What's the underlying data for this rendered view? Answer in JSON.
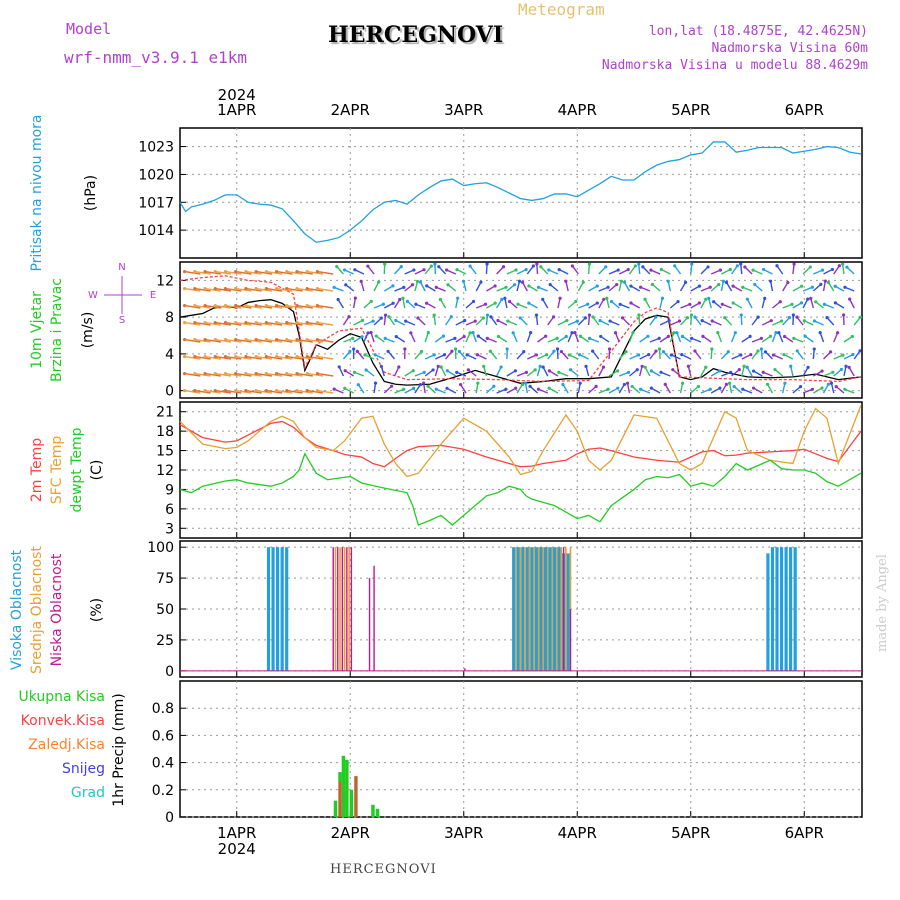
{
  "header": {
    "model_label": "Model",
    "model_name": "wrf-nmm_v3.9.1  e1km",
    "station": "HERCEGNOVI",
    "meteogram": "Meteogram",
    "lonlat": "lon,lat (18.4875E, 42.4625N)",
    "altitude": "Nadmorska Visina 60m",
    "model_altitude": "Nadmorska Visina u modelu 88.4629m",
    "footer_station": "HERCEGNOVI",
    "credit": "made by Angel"
  },
  "colors": {
    "pressure": "#22a0e0",
    "wind_speed": "#000000",
    "gust": "#ff4040",
    "temp2m": "#ff4040",
    "sfc_temp": "#e8a030",
    "dewpoint": "#22cc22",
    "high_cloud": "#22a0e0",
    "mid_cloud": "#e8a030",
    "low_cloud": "#c01890",
    "total_precip": "#22cc22",
    "conv_precip": "#ff4040",
    "frozen_precip": "#ff8030",
    "snow": "#4040e0",
    "hail": "#20c8c0"
  },
  "chart_data": [
    {
      "id": "pressure",
      "type": "line",
      "ylabel": [
        "Pritisak na nivou mora",
        "(hPa)"
      ],
      "yticks": [
        1014,
        1017,
        1020,
        1023
      ],
      "ylim": [
        1011,
        1025
      ],
      "top_axis": {
        "year": "2024",
        "labels": [
          "1APR",
          "2APR",
          "3APR",
          "4APR",
          "5APR",
          "6APR"
        ]
      },
      "series": [
        {
          "x": [
            0,
            0.05,
            0.1,
            0.2,
            0.3,
            0.4,
            0.5,
            0.6,
            0.7,
            0.8,
            0.9,
            1.0,
            1.1,
            1.2,
            1.3,
            1.4,
            1.5,
            1.6,
            1.7,
            1.8,
            1.9,
            2.0,
            2.1,
            2.2,
            2.3,
            2.4,
            2.5,
            2.6,
            2.7,
            2.8,
            2.9,
            3.0,
            3.1,
            3.2,
            3.3,
            3.4,
            3.5,
            3.6,
            3.7,
            3.8,
            3.9,
            4.0,
            4.1,
            4.2,
            4.3,
            4.4,
            4.5,
            4.6,
            4.7,
            4.8,
            4.9,
            5.0,
            5.1,
            5.2,
            5.3,
            5.4,
            5.5,
            5.6,
            5.7,
            5.8,
            5.9,
            6.0
          ],
          "values": [
            1017,
            1016,
            1016.5,
            1016.8,
            1017.2,
            1017.8,
            1017.8,
            1017,
            1016.8,
            1016.7,
            1016.3,
            1015,
            1013.6,
            1012.7,
            1012.9,
            1013.2,
            1014,
            1015,
            1016.2,
            1017,
            1017.2,
            1016.8,
            1017.8,
            1018.6,
            1019.3,
            1019.5,
            1018.8,
            1019,
            1019.1,
            1018.6,
            1018,
            1017.4,
            1017.2,
            1017.4,
            1017.9,
            1017.9,
            1017.6,
            1018.3,
            1019,
            1019.8,
            1019.4,
            1019.4,
            1020.3,
            1021,
            1021.4,
            1021.6,
            1022.1,
            1022.3,
            1023.5,
            1023.5,
            1022.4,
            1022.6,
            1022.9,
            1022.9,
            1022.9,
            1022.3,
            1022.5,
            1022.7,
            1023,
            1022.9,
            1022.4,
            1022.2
          ]
        }
      ]
    },
    {
      "id": "wind",
      "type": "line",
      "ylabel": [
        "10m Vjetar",
        "Brzina i Pravac",
        "(m/s)"
      ],
      "yticks": [
        0,
        4,
        8,
        12
      ],
      "ylim": [
        -0.8,
        14
      ],
      "compass": {
        "n": "N",
        "s": "S",
        "e": "E",
        "w": "W"
      },
      "series": [
        {
          "name": "speed",
          "x": [
            0,
            0.1,
            0.2,
            0.3,
            0.4,
            0.5,
            0.6,
            0.7,
            0.8,
            0.9,
            1.0,
            1.05,
            1.1,
            1.15,
            1.2,
            1.3,
            1.4,
            1.5,
            1.6,
            1.7,
            1.8,
            1.9,
            2.0,
            2.2,
            2.4,
            2.6,
            2.8,
            3.0,
            3.2,
            3.4,
            3.6,
            3.8,
            4.0,
            4.1,
            4.2,
            4.3,
            4.4,
            4.5,
            4.6,
            4.7,
            4.8,
            5.0,
            5.2,
            5.4,
            5.6,
            5.8,
            6.0
          ],
          "values": [
            8,
            8.2,
            8.4,
            9,
            9.2,
            9,
            9.6,
            9.8,
            9.9,
            9.5,
            8.6,
            6,
            2.2,
            3.5,
            5,
            4.5,
            5.5,
            6.2,
            5.8,
            3,
            1,
            0.7,
            0.6,
            0.7,
            1.4,
            2.2,
            1.5,
            0.8,
            1.0,
            1.3,
            1.3,
            1.5,
            6.5,
            7.8,
            8.2,
            8,
            1.5,
            1.2,
            1.5,
            2.4,
            2,
            1.5,
            1.4,
            1.5,
            1.8,
            1.2,
            1.5
          ]
        },
        {
          "name": "gust",
          "x": [
            0,
            0.2,
            0.4,
            0.6,
            0.8,
            1.0,
            1.1,
            1.2,
            1.4,
            1.6,
            1.8,
            2.0,
            2.4,
            2.8,
            3.2,
            3.6,
            4.0,
            4.1,
            4.2,
            4.3,
            4.4,
            4.6,
            5.0,
            5.4,
            5.8,
            6.0
          ],
          "values": [
            12,
            12.3,
            12.5,
            12,
            11.8,
            10.5,
            2.5,
            5,
            6.5,
            6.8,
            2,
            1.2,
            1.3,
            1.2,
            1,
            1.1,
            7.5,
            8.5,
            9,
            8.5,
            1.5,
            1.4,
            1.2,
            1.2,
            1.0,
            1.5
          ]
        }
      ]
    },
    {
      "id": "temperature",
      "type": "line",
      "ylabel": [
        "2m Temp",
        "SFC Temp",
        "dewpt Temp",
        "(C)"
      ],
      "yticks": [
        3,
        6,
        9,
        12,
        15,
        18,
        21
      ],
      "ylim": [
        1.5,
        22.5
      ],
      "series": [
        {
          "name": "2m Temp",
          "x": [
            0,
            0.2,
            0.4,
            0.5,
            0.6,
            0.8,
            0.9,
            1.0,
            1.1,
            1.2,
            1.35,
            1.45,
            1.6,
            1.7,
            1.8,
            1.9,
            2.0,
            2.1,
            2.3,
            2.5,
            2.7,
            2.9,
            3.0,
            3.1,
            3.2,
            3.4,
            3.5,
            3.6,
            3.7,
            3.8,
            4.0,
            4.2,
            4.4,
            4.5,
            4.6,
            4.7,
            4.8,
            4.9,
            5.0,
            5.2,
            5.4,
            5.5,
            5.6,
            5.7,
            5.8,
            6.0
          ],
          "values": [
            19,
            17,
            16.3,
            16.5,
            17.4,
            19.2,
            19.5,
            18.6,
            17,
            15.8,
            15,
            14.4,
            14,
            13,
            12.5,
            13.8,
            15,
            15.6,
            15.8,
            15.2,
            14,
            13,
            12.5,
            12.6,
            13,
            13.5,
            14.5,
            15.2,
            15.4,
            15,
            14,
            13.5,
            13.2,
            14,
            14.8,
            15,
            14.2,
            14.3,
            14.6,
            14.8,
            15,
            15.2,
            14.5,
            13.8,
            13.3,
            18
          ]
        },
        {
          "name": "SFC Temp",
          "x": [
            0,
            0.2,
            0.4,
            0.5,
            0.6,
            0.8,
            0.9,
            1.0,
            1.1,
            1.2,
            1.35,
            1.45,
            1.6,
            1.7,
            1.8,
            1.9,
            2.0,
            2.1,
            2.3,
            2.5,
            2.7,
            2.9,
            3.0,
            3.1,
            3.2,
            3.4,
            3.5,
            3.6,
            3.7,
            3.8,
            4.0,
            4.2,
            4.4,
            4.5,
            4.6,
            4.7,
            4.8,
            4.9,
            5.0,
            5.2,
            5.4,
            5.5,
            5.6,
            5.7,
            5.8,
            6.0
          ],
          "values": [
            19.5,
            16,
            15.3,
            15.5,
            16.5,
            19.5,
            20.3,
            19.5,
            17,
            15.5,
            15,
            16.5,
            20,
            20.3,
            16,
            13,
            11,
            11.5,
            16,
            20,
            18,
            14,
            11.3,
            11.8,
            15,
            20.5,
            18,
            13.5,
            12,
            13.5,
            20.5,
            20,
            13,
            12,
            13,
            17,
            21,
            20,
            15,
            13.5,
            13,
            18,
            21.5,
            20,
            13,
            22
          ]
        },
        {
          "name": "dewpt Temp",
          "x": [
            0,
            0.1,
            0.2,
            0.4,
            0.5,
            0.6,
            0.8,
            0.9,
            1.0,
            1.05,
            1.1,
            1.2,
            1.3,
            1.5,
            1.6,
            1.8,
            2.0,
            2.05,
            2.1,
            2.2,
            2.3,
            2.4,
            2.5,
            2.6,
            2.7,
            2.8,
            2.9,
            3.0,
            3.05,
            3.1,
            3.2,
            3.3,
            3.4,
            3.5,
            3.6,
            3.7,
            3.8,
            4.0,
            4.1,
            4.2,
            4.3,
            4.4,
            4.5,
            4.6,
            4.7,
            4.8,
            4.9,
            5.0,
            5.2,
            5.3,
            5.4,
            5.5,
            5.6,
            5.7,
            5.8,
            6.0
          ],
          "values": [
            9,
            8.5,
            9.5,
            10.3,
            10.5,
            10,
            9.5,
            10,
            11,
            12,
            14.5,
            11.5,
            10.5,
            11,
            10,
            9.2,
            8.5,
            6.5,
            3.5,
            4.2,
            5,
            3.5,
            5,
            6.5,
            8,
            8.5,
            9.5,
            9,
            8,
            7.5,
            7,
            6.5,
            5.5,
            4.5,
            5,
            4,
            6.5,
            9,
            10.5,
            11,
            10.8,
            11.3,
            9.5,
            10,
            9.5,
            11,
            13,
            12,
            13.5,
            12.2,
            12,
            12,
            11.5,
            10.2,
            9.5,
            11.5
          ]
        }
      ]
    },
    {
      "id": "clouds",
      "type": "bar",
      "ylabel": [
        "Visoka Oblacnost",
        "Srednja Oblacnost",
        "Niska Oblacnost",
        "(%)"
      ],
      "yticks": [
        0,
        25,
        50,
        75,
        100
      ],
      "ylim": [
        -5,
        105
      ],
      "series": [
        {
          "name": "Visoka Oblacnost",
          "x": [
            0.78,
            0.82,
            0.86,
            0.9,
            0.94,
            2.94,
            2.98,
            3.02,
            3.06,
            3.1,
            3.14,
            3.18,
            3.22,
            3.26,
            3.3,
            3.34,
            3.38,
            3.42,
            5.18,
            5.22,
            5.26,
            5.3,
            5.34,
            5.38,
            5.42
          ],
          "values": [
            100,
            100,
            100,
            100,
            100,
            100,
            100,
            100,
            100,
            100,
            100,
            100,
            100,
            100,
            100,
            100,
            95,
            95,
            95,
            100,
            100,
            100,
            100,
            100,
            100
          ]
        },
        {
          "name": "Srednja Oblacnost",
          "x": [
            1.37,
            1.41,
            1.45,
            1.49,
            2.96,
            3.0,
            3.04,
            3.08,
            3.12,
            3.16,
            3.2,
            3.24,
            3.28,
            3.32,
            3.36,
            3.4,
            3.44
          ],
          "values": [
            100,
            100,
            100,
            100,
            100,
            100,
            100,
            100,
            100,
            100,
            100,
            100,
            100,
            100,
            100,
            100,
            100
          ]
        },
        {
          "name": "Niska Oblacnost",
          "x": [
            1.35,
            1.39,
            1.43,
            1.47,
            1.51,
            1.67,
            1.71,
            2.51,
            3.38,
            3.44
          ],
          "values": [
            100,
            100,
            100,
            100,
            100,
            75,
            85,
            2,
            100,
            50
          ]
        }
      ]
    },
    {
      "id": "precip",
      "type": "bar",
      "ylabel": [
        "1hr Precip (mm)"
      ],
      "legend": [
        "Ukupna Kisa",
        "Konvek.Kisa",
        "Zaledj.Kisa",
        "Snijeg",
        "Grad"
      ],
      "yticks": [
        0,
        0.2,
        0.4,
        0.6,
        0.8
      ],
      "ylim": [
        0,
        1.0
      ],
      "bottom_axis": {
        "labels": [
          "1APR",
          "2APR",
          "3APR",
          "4APR",
          "5APR",
          "6APR"
        ],
        "year": "2024"
      },
      "series": [
        {
          "name": "Ukupna Kisa",
          "x": [
            1.37,
            1.41,
            1.44,
            1.47,
            1.51,
            1.55,
            1.7,
            1.74
          ],
          "values": [
            0.12,
            0.33,
            0.45,
            0.42,
            0.2,
            0.3,
            0.09,
            0.06
          ]
        },
        {
          "name": "Konvek.Kisa",
          "x": [
            1.41,
            1.55
          ],
          "values": [
            0.26,
            0.3
          ]
        }
      ]
    }
  ]
}
